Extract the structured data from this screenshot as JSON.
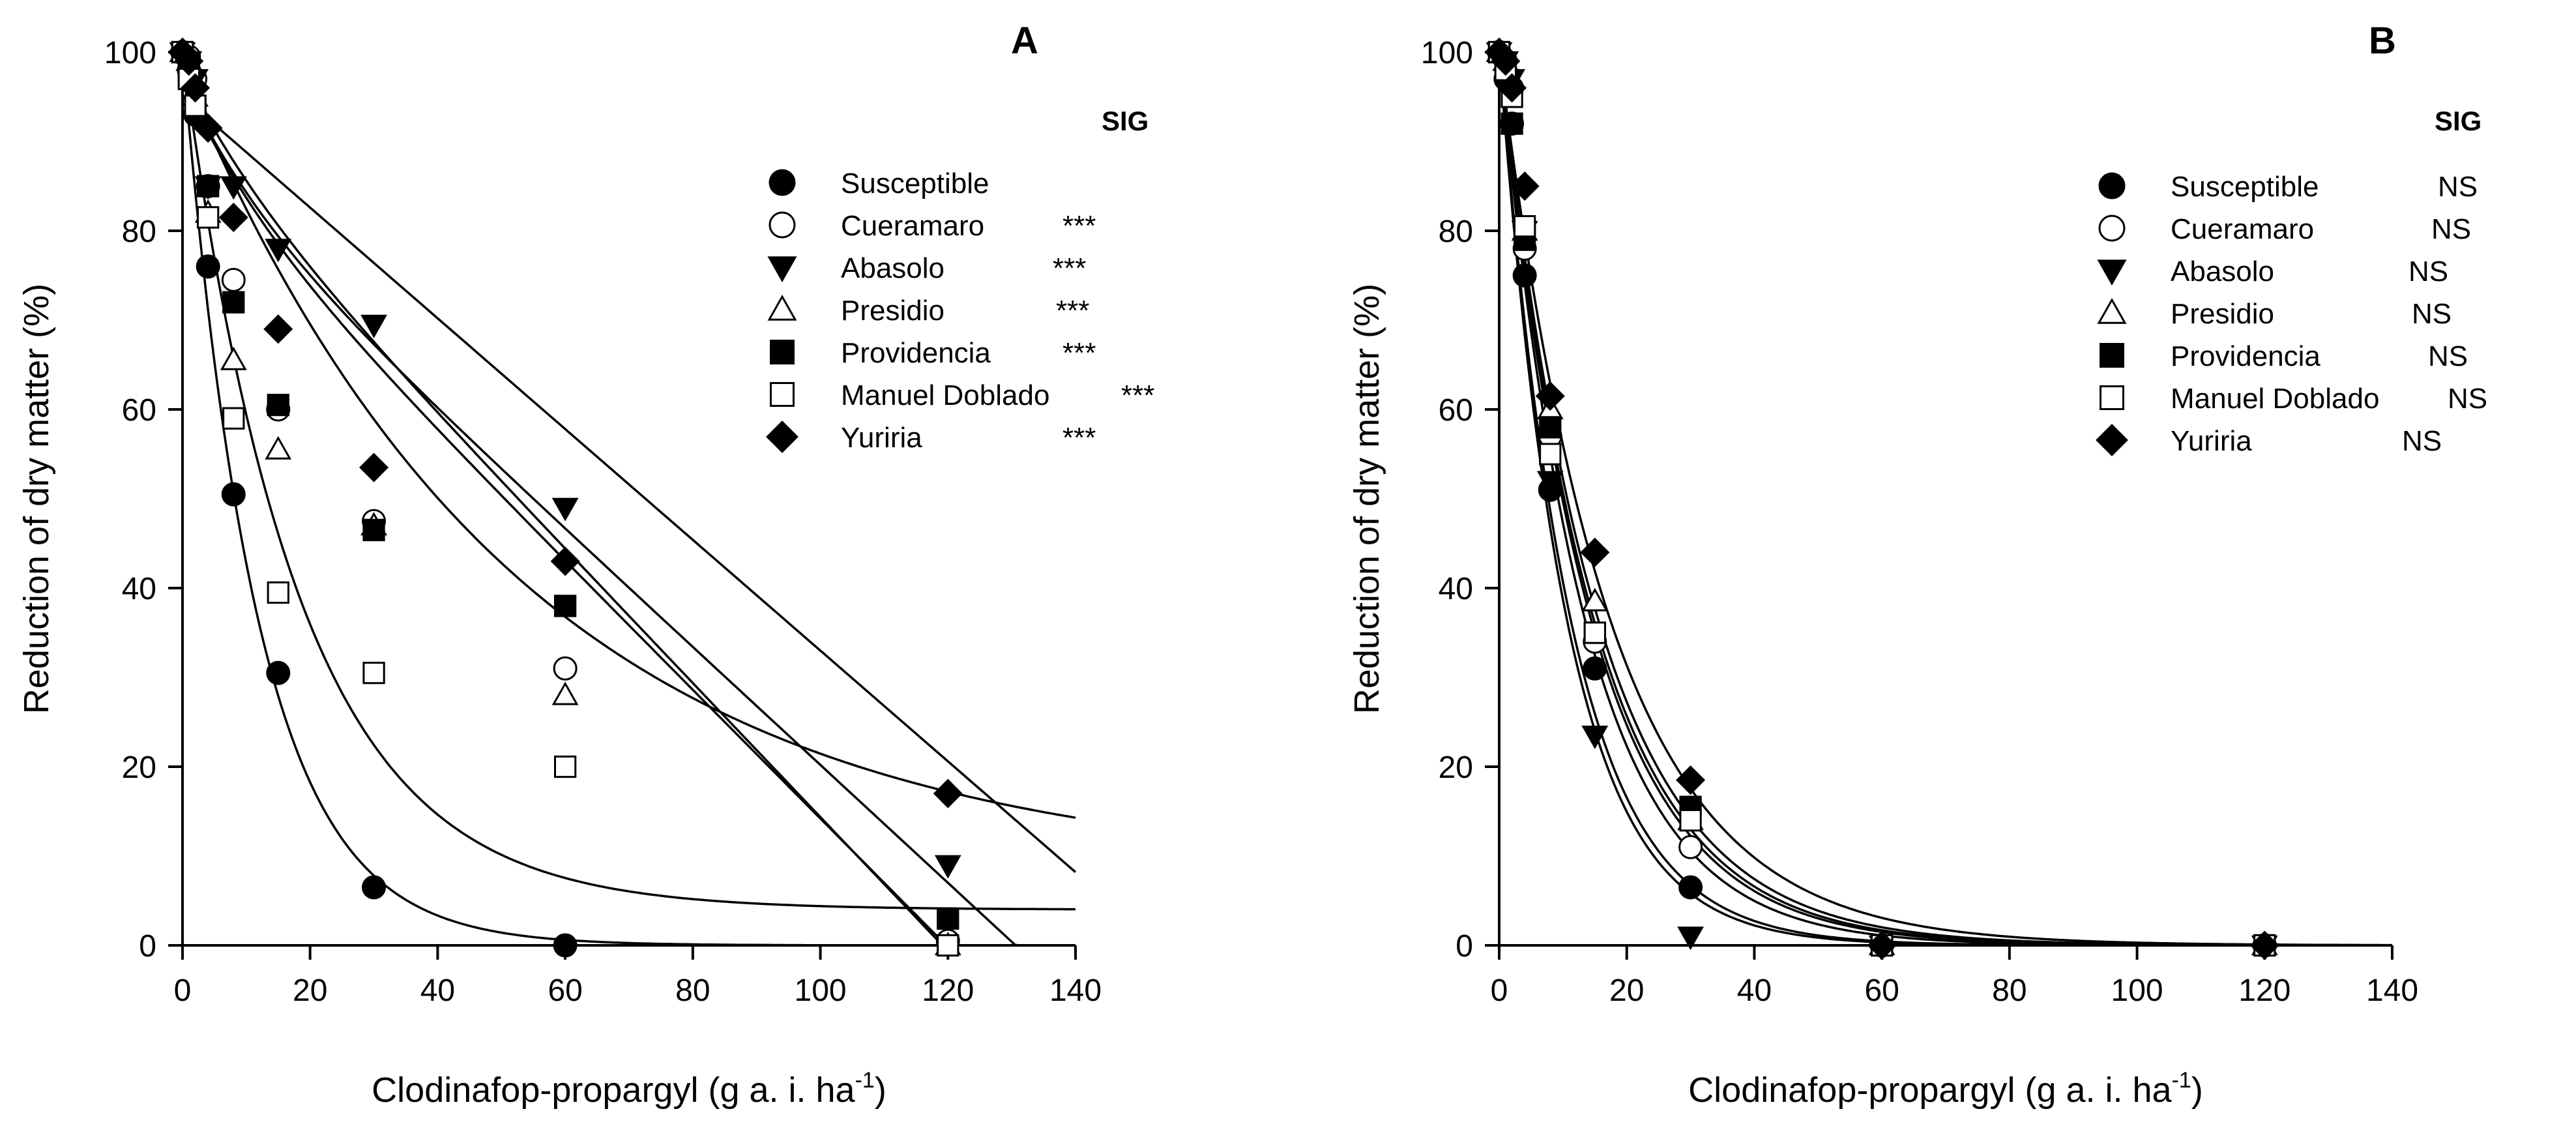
{
  "chart_data": [
    {
      "panel": "A",
      "type": "scatter",
      "panel_label": "A",
      "sig_header": "SIG",
      "xlabel_main": "Clodinafop-propargyl (g a. i. ha",
      "xlabel_sup": "-1",
      "xlabel_end": ")",
      "ylabel": "Reduction of dry matter (%)",
      "xlim": [
        0,
        140
      ],
      "ylim": [
        0,
        100
      ],
      "xticks": [
        "0",
        "20",
        "40",
        "60",
        "80",
        "100",
        "120",
        "140"
      ],
      "yticks": [
        "0",
        "20",
        "40",
        "60",
        "80",
        "100"
      ],
      "series": [
        {
          "name": "Susceptible",
          "sig": "",
          "marker": "circle-filled",
          "x": [
            0,
            1,
            2,
            4,
            8,
            15,
            30,
            60
          ],
          "y": [
            100,
            98,
            93,
            76,
            50.5,
            30.5,
            6.5,
            0
          ],
          "fit": {
            "model": "exp",
            "y0": 100,
            "k": 0.085
          }
        },
        {
          "name": "Cueramaro",
          "sig": "***",
          "marker": "circle-open",
          "x": [
            0,
            1,
            2,
            4,
            8,
            15,
            30,
            60,
            120
          ],
          "y": [
            100,
            99.5,
            97,
            85,
            74.5,
            60,
            47.5,
            31,
            0.5
          ],
          "fit": {
            "model": "linear",
            "y0": 98,
            "slope": -0.75,
            "bend": 0.016
          }
        },
        {
          "name": "Abasolo",
          "sig": "***",
          "marker": "triangle-down-filled",
          "x": [
            0,
            1,
            2,
            4,
            8,
            15,
            30,
            60,
            120
          ],
          "y": [
            100,
            99,
            97,
            85,
            85,
            78,
            69.5,
            49,
            9
          ],
          "fit": {
            "model": "linear",
            "y0": 95,
            "slope": -0.62,
            "bend": 0.0
          }
        },
        {
          "name": "Presidio",
          "sig": "***",
          "marker": "triangle-up-open",
          "x": [
            0,
            1,
            2,
            4,
            8,
            15,
            30,
            60,
            120
          ],
          "y": [
            100,
            99,
            95,
            82,
            65.5,
            55.5,
            47,
            28,
            0
          ],
          "fit": {
            "model": "linear",
            "y0": 97,
            "slope": -0.72,
            "bend": 0.02
          }
        },
        {
          "name": "Providencia",
          "sig": "***",
          "marker": "square-filled",
          "x": [
            0,
            1,
            2,
            4,
            8,
            15,
            30,
            60,
            120
          ],
          "y": [
            100,
            98,
            94,
            85,
            72,
            60.5,
            46.5,
            38,
            3
          ],
          "fit": {
            "model": "linear",
            "y0": 97,
            "slope": -0.66,
            "bend": 0.02
          }
        },
        {
          "name": "Manuel Doblado",
          "sig": "***",
          "marker": "square-open",
          "x": [
            0,
            1,
            2,
            4,
            8,
            15,
            30,
            60,
            120
          ],
          "y": [
            100,
            97,
            94,
            81.5,
            59,
            39.5,
            30.5,
            20,
            0
          ],
          "fit": {
            "model": "decay",
            "y0": 100,
            "k": 0.055,
            "floor": 4
          }
        },
        {
          "name": "Yuriria",
          "sig": "***",
          "marker": "diamond-filled",
          "x": [
            0,
            1,
            2,
            4,
            8,
            15,
            30,
            60,
            120
          ],
          "y": [
            100,
            99,
            96,
            91.5,
            81.5,
            69,
            53.5,
            43,
            17
          ],
          "fit": {
            "model": "decay",
            "y0": 98,
            "k": 0.019,
            "floor": 8
          }
        }
      ]
    },
    {
      "panel": "B",
      "type": "scatter",
      "panel_label": "B",
      "sig_header": "SIG",
      "xlabel_main": "Clodinafop-propargyl (g a. i. ha",
      "xlabel_sup": "-1",
      "xlabel_end": ")",
      "ylabel": "Reduction of dry matter (%)",
      "xlim": [
        0,
        140
      ],
      "ylim": [
        0,
        100
      ],
      "xticks": [
        "0",
        "20",
        "40",
        "60",
        "80",
        "100",
        "120",
        "140"
      ],
      "yticks": [
        "0",
        "20",
        "40",
        "60",
        "80",
        "100"
      ],
      "series": [
        {
          "name": "Susceptible",
          "sig": "NS",
          "marker": "circle-filled",
          "x": [
            0,
            1,
            2,
            4,
            8,
            15,
            30,
            60,
            120
          ],
          "y": [
            100,
            97,
            92,
            75,
            51,
            31,
            6.5,
            0,
            0
          ],
          "fit": {
            "model": "exp",
            "y0": 100,
            "k": 0.09
          }
        },
        {
          "name": "Cueramaro",
          "sig": "NS",
          "marker": "circle-open",
          "x": [
            0,
            1,
            2,
            4,
            8,
            15,
            30,
            60,
            120
          ],
          "y": [
            100,
            99,
            96,
            78,
            57,
            34,
            11,
            0,
            0
          ],
          "fit": {
            "model": "exp",
            "y0": 100,
            "k": 0.075
          }
        },
        {
          "name": "Abasolo",
          "sig": "NS",
          "marker": "triangle-down-filled",
          "x": [
            0,
            1,
            2,
            4,
            8,
            15,
            30,
            60,
            120
          ],
          "y": [
            100,
            99,
            97,
            80,
            52,
            23.5,
            1,
            0,
            0
          ],
          "fit": {
            "model": "exp",
            "y0": 100,
            "k": 0.095
          }
        },
        {
          "name": "Presidio",
          "sig": "NS",
          "marker": "triangle-up-open",
          "x": [
            0,
            1,
            2,
            4,
            8,
            15,
            30,
            60,
            120
          ],
          "y": [
            100,
            99,
            97,
            80,
            60,
            38.5,
            14,
            0,
            0
          ],
          "fit": {
            "model": "exp",
            "y0": 100,
            "k": 0.068
          }
        },
        {
          "name": "Providencia",
          "sig": "NS",
          "marker": "square-filled",
          "x": [
            0,
            1,
            2,
            4,
            8,
            15,
            30,
            60,
            120
          ],
          "y": [
            100,
            98,
            92,
            79,
            58,
            35,
            15.5,
            0,
            0
          ],
          "fit": {
            "model": "exp",
            "y0": 100,
            "k": 0.065
          }
        },
        {
          "name": "Manuel Doblado",
          "sig": "NS",
          "marker": "square-open",
          "x": [
            0,
            1,
            2,
            4,
            8,
            15,
            30,
            60,
            120
          ],
          "y": [
            100,
            98,
            95,
            80.5,
            55,
            35,
            14,
            0,
            0
          ],
          "fit": {
            "model": "exp",
            "y0": 100,
            "k": 0.07
          }
        },
        {
          "name": "Yuriria",
          "sig": "NS",
          "marker": "diamond-filled",
          "x": [
            0,
            1,
            2,
            4,
            8,
            15,
            30,
            60,
            120
          ],
          "y": [
            100,
            99,
            96,
            85,
            61.5,
            44,
            18.5,
            0,
            0
          ],
          "fit": {
            "model": "exp",
            "y0": 100,
            "k": 0.058
          }
        }
      ]
    }
  ]
}
